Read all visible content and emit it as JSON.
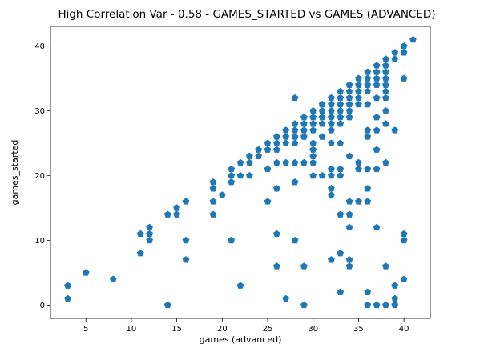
{
  "chart_data": {
    "type": "scatter",
    "title": "High Correlation Var - 0.58 - GAMES_STARTED vs GAMES (ADVANCED)",
    "xlabel": "games (advanced)",
    "ylabel": "games_started",
    "xlim": [
      1.1,
      42.9
    ],
    "ylim": [
      -2.05,
      43.05
    ],
    "xticks": [
      5,
      10,
      15,
      20,
      25,
      30,
      35,
      40
    ],
    "yticks": [
      0,
      10,
      20,
      30,
      40
    ],
    "grid": false,
    "marker": "pentagon",
    "color": "#1f77b4",
    "points": [
      [
        3,
        3
      ],
      [
        3,
        1
      ],
      [
        5,
        5
      ],
      [
        8,
        4
      ],
      [
        11,
        11
      ],
      [
        11,
        8
      ],
      [
        12,
        12
      ],
      [
        12,
        11
      ],
      [
        12,
        10
      ],
      [
        14,
        14
      ],
      [
        14,
        0
      ],
      [
        15,
        15
      ],
      [
        15,
        14
      ],
      [
        16,
        16
      ],
      [
        16,
        10
      ],
      [
        16,
        7
      ],
      [
        19,
        19
      ],
      [
        19,
        18
      ],
      [
        19,
        16
      ],
      [
        19,
        14
      ],
      [
        20,
        17
      ],
      [
        21,
        21
      ],
      [
        21,
        20
      ],
      [
        21,
        19
      ],
      [
        21,
        10
      ],
      [
        22,
        22
      ],
      [
        22,
        20
      ],
      [
        22,
        3
      ],
      [
        23,
        23
      ],
      [
        23,
        22
      ],
      [
        23,
        20
      ],
      [
        24,
        24
      ],
      [
        24,
        23
      ],
      [
        25,
        25
      ],
      [
        25,
        24
      ],
      [
        25,
        21
      ],
      [
        25,
        16
      ],
      [
        26,
        26
      ],
      [
        26,
        25
      ],
      [
        26,
        24
      ],
      [
        26,
        22
      ],
      [
        26,
        18
      ],
      [
        26,
        11
      ],
      [
        26,
        6
      ],
      [
        27,
        27
      ],
      [
        27,
        26
      ],
      [
        27,
        25
      ],
      [
        27,
        22
      ],
      [
        27,
        1
      ],
      [
        28,
        32
      ],
      [
        28,
        28
      ],
      [
        28,
        27
      ],
      [
        28,
        26
      ],
      [
        28,
        25
      ],
      [
        28,
        22
      ],
      [
        28,
        19
      ],
      [
        28,
        10
      ],
      [
        29,
        29
      ],
      [
        29,
        28
      ],
      [
        29,
        27
      ],
      [
        29,
        26
      ],
      [
        29,
        22
      ],
      [
        29,
        6
      ],
      [
        29,
        0
      ],
      [
        30,
        30
      ],
      [
        30,
        29
      ],
      [
        30,
        28
      ],
      [
        30,
        27
      ],
      [
        30,
        25
      ],
      [
        30,
        24
      ],
      [
        30,
        23
      ],
      [
        30,
        22
      ],
      [
        30,
        20
      ],
      [
        31,
        31
      ],
      [
        31,
        30
      ],
      [
        31,
        29
      ],
      [
        31,
        28
      ],
      [
        31,
        26
      ],
      [
        31,
        20
      ],
      [
        32,
        32
      ],
      [
        32,
        31
      ],
      [
        32,
        30
      ],
      [
        32,
        29
      ],
      [
        32,
        28
      ],
      [
        32,
        27
      ],
      [
        32,
        25
      ],
      [
        32,
        21
      ],
      [
        32,
        20
      ],
      [
        32,
        18
      ],
      [
        32,
        17
      ],
      [
        32,
        7
      ],
      [
        33,
        33
      ],
      [
        33,
        32
      ],
      [
        33,
        31
      ],
      [
        33,
        30
      ],
      [
        33,
        29
      ],
      [
        33,
        28
      ],
      [
        33,
        25
      ],
      [
        33,
        21
      ],
      [
        33,
        20
      ],
      [
        33,
        14
      ],
      [
        33,
        8
      ],
      [
        33,
        2
      ],
      [
        34,
        34
      ],
      [
        34,
        33
      ],
      [
        34,
        32
      ],
      [
        34,
        31
      ],
      [
        34,
        30
      ],
      [
        34,
        29
      ],
      [
        34,
        23
      ],
      [
        34,
        16
      ],
      [
        34,
        14
      ],
      [
        34,
        12
      ],
      [
        34,
        7
      ],
      [
        34,
        6
      ],
      [
        35,
        35
      ],
      [
        35,
        34
      ],
      [
        35,
        33
      ],
      [
        35,
        32
      ],
      [
        35,
        31
      ],
      [
        35,
        22
      ],
      [
        35,
        21
      ],
      [
        35,
        16
      ],
      [
        36,
        36
      ],
      [
        36,
        35
      ],
      [
        36,
        34
      ],
      [
        36,
        33
      ],
      [
        36,
        31
      ],
      [
        36,
        27
      ],
      [
        36,
        26
      ],
      [
        36,
        21
      ],
      [
        36,
        18
      ],
      [
        36,
        16
      ],
      [
        36,
        2
      ],
      [
        36,
        0
      ],
      [
        37,
        37
      ],
      [
        37,
        36
      ],
      [
        37,
        35
      ],
      [
        37,
        34
      ],
      [
        37,
        32
      ],
      [
        37,
        29
      ],
      [
        37,
        27
      ],
      [
        37,
        24
      ],
      [
        37,
        21
      ],
      [
        37,
        12
      ],
      [
        37,
        0
      ],
      [
        38,
        38
      ],
      [
        38,
        37
      ],
      [
        38,
        36
      ],
      [
        38,
        35
      ],
      [
        38,
        34
      ],
      [
        38,
        33
      ],
      [
        38,
        32
      ],
      [
        38,
        30
      ],
      [
        38,
        28
      ],
      [
        38,
        22
      ],
      [
        38,
        6
      ],
      [
        38,
        0
      ],
      [
        39,
        39
      ],
      [
        39,
        38
      ],
      [
        39,
        27
      ],
      [
        39,
        3
      ],
      [
        39,
        1
      ],
      [
        39,
        0
      ],
      [
        40,
        40
      ],
      [
        40,
        39
      ],
      [
        40,
        35
      ],
      [
        40,
        11
      ],
      [
        40,
        10
      ],
      [
        40,
        4
      ],
      [
        41,
        41
      ]
    ]
  }
}
